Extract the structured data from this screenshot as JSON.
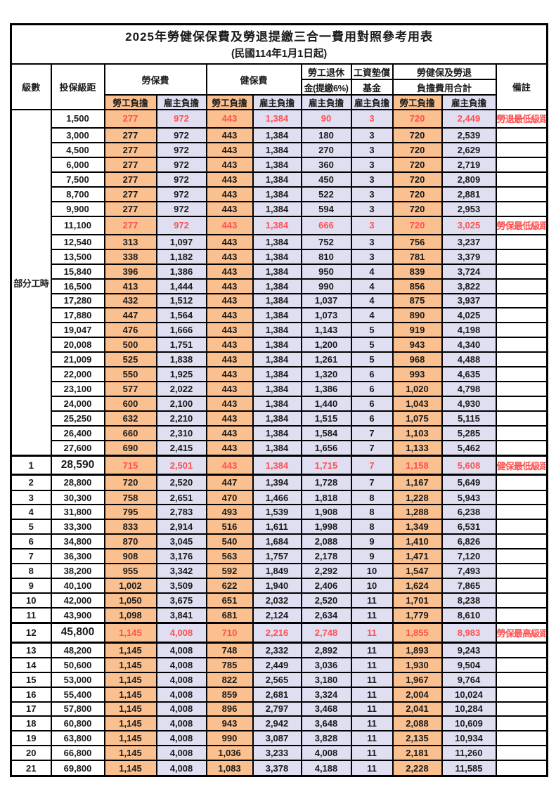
{
  "page": {
    "title": "2025年勞健保保費及勞退提繳三合一費用對照參考用表",
    "subtitle": "(民國114年1月1日起)"
  },
  "header": {
    "level": "級數",
    "bracket": "投保級距",
    "labor_group": "勞保費",
    "health_group": "健保費",
    "pension_line1": "勞工退休",
    "pension_line2": "金(提繳6%)",
    "fund_line1": "工資墊償",
    "fund_line2": "基金",
    "total_line1": "勞健保及勞退",
    "total_line2": "負擔費用合計",
    "emp_label": "勞工負擔",
    "er_label": "雇主負擔",
    "note": "備註"
  },
  "part_time_label": "部分工時",
  "colors": {
    "employee_column_fill": "#FAC090",
    "employer_column_fill": "#E0DFF2",
    "highlight_text": "#FF5050",
    "grid_border": "#000000"
  },
  "rows": [
    {
      "level": "",
      "bracket": "1,500",
      "values": [
        "277",
        "972",
        "443",
        "1,384",
        "90",
        "3",
        "720",
        "2,449"
      ],
      "note": "勞退最低級距",
      "highlight": true,
      "emphasis": false
    },
    {
      "level": "",
      "bracket": "3,000",
      "values": [
        "277",
        "972",
        "443",
        "1,384",
        "180",
        "3",
        "720",
        "2,539"
      ],
      "note": "",
      "highlight": false,
      "emphasis": false
    },
    {
      "level": "",
      "bracket": "4,500",
      "values": [
        "277",
        "972",
        "443",
        "1,384",
        "270",
        "3",
        "720",
        "2,629"
      ],
      "note": "",
      "highlight": false,
      "emphasis": false
    },
    {
      "level": "",
      "bracket": "6,000",
      "values": [
        "277",
        "972",
        "443",
        "1,384",
        "360",
        "3",
        "720",
        "2,719"
      ],
      "note": "",
      "highlight": false,
      "emphasis": false
    },
    {
      "level": "",
      "bracket": "7,500",
      "values": [
        "277",
        "972",
        "443",
        "1,384",
        "450",
        "3",
        "720",
        "2,809"
      ],
      "note": "",
      "highlight": false,
      "emphasis": false
    },
    {
      "level": "",
      "bracket": "8,700",
      "values": [
        "277",
        "972",
        "443",
        "1,384",
        "522",
        "3",
        "720",
        "2,881"
      ],
      "note": "",
      "highlight": false,
      "emphasis": false
    },
    {
      "level": "",
      "bracket": "9,900",
      "values": [
        "277",
        "972",
        "443",
        "1,384",
        "594",
        "3",
        "720",
        "2,953"
      ],
      "note": "",
      "highlight": false,
      "emphasis": false
    },
    {
      "level": "",
      "bracket": "11,100",
      "values": [
        "277",
        "972",
        "443",
        "1,384",
        "666",
        "3",
        "720",
        "3,025"
      ],
      "note": "勞保最低級距",
      "highlight": true,
      "emphasis": false
    },
    {
      "level": "",
      "bracket": "12,540",
      "values": [
        "313",
        "1,097",
        "443",
        "1,384",
        "752",
        "3",
        "756",
        "3,237"
      ],
      "note": "",
      "highlight": false,
      "emphasis": false
    },
    {
      "level": "",
      "bracket": "13,500",
      "values": [
        "338",
        "1,182",
        "443",
        "1,384",
        "810",
        "3",
        "781",
        "3,379"
      ],
      "note": "",
      "highlight": false,
      "emphasis": false
    },
    {
      "level": "",
      "bracket": "15,840",
      "values": [
        "396",
        "1,386",
        "443",
        "1,384",
        "950",
        "4",
        "839",
        "3,724"
      ],
      "note": "",
      "highlight": false,
      "emphasis": false
    },
    {
      "level": "",
      "bracket": "16,500",
      "values": [
        "413",
        "1,444",
        "443",
        "1,384",
        "990",
        "4",
        "856",
        "3,822"
      ],
      "note": "",
      "highlight": false,
      "emphasis": false
    },
    {
      "level": "",
      "bracket": "17,280",
      "values": [
        "432",
        "1,512",
        "443",
        "1,384",
        "1,037",
        "4",
        "875",
        "3,937"
      ],
      "note": "",
      "highlight": false,
      "emphasis": false
    },
    {
      "level": "",
      "bracket": "17,880",
      "values": [
        "447",
        "1,564",
        "443",
        "1,384",
        "1,073",
        "4",
        "890",
        "4,025"
      ],
      "note": "",
      "highlight": false,
      "emphasis": false
    },
    {
      "level": "",
      "bracket": "19,047",
      "values": [
        "476",
        "1,666",
        "443",
        "1,384",
        "1,143",
        "5",
        "919",
        "4,198"
      ],
      "note": "",
      "highlight": false,
      "emphasis": false
    },
    {
      "level": "",
      "bracket": "20,008",
      "values": [
        "500",
        "1,751",
        "443",
        "1,384",
        "1,200",
        "5",
        "943",
        "4,340"
      ],
      "note": "",
      "highlight": false,
      "emphasis": false
    },
    {
      "level": "",
      "bracket": "21,009",
      "values": [
        "525",
        "1,838",
        "443",
        "1,384",
        "1,261",
        "5",
        "968",
        "4,488"
      ],
      "note": "",
      "highlight": false,
      "emphasis": false
    },
    {
      "level": "",
      "bracket": "22,000",
      "values": [
        "550",
        "1,925",
        "443",
        "1,384",
        "1,320",
        "6",
        "993",
        "4,635"
      ],
      "note": "",
      "highlight": false,
      "emphasis": false
    },
    {
      "level": "",
      "bracket": "23,100",
      "values": [
        "577",
        "2,022",
        "443",
        "1,384",
        "1,386",
        "6",
        "1,020",
        "4,798"
      ],
      "note": "",
      "highlight": false,
      "emphasis": false
    },
    {
      "level": "",
      "bracket": "24,000",
      "values": [
        "600",
        "2,100",
        "443",
        "1,384",
        "1,440",
        "6",
        "1,043",
        "4,930"
      ],
      "note": "",
      "highlight": false,
      "emphasis": false
    },
    {
      "level": "",
      "bracket": "25,250",
      "values": [
        "632",
        "2,210",
        "443",
        "1,384",
        "1,515",
        "6",
        "1,075",
        "5,115"
      ],
      "note": "",
      "highlight": false,
      "emphasis": false
    },
    {
      "level": "",
      "bracket": "26,400",
      "values": [
        "660",
        "2,310",
        "443",
        "1,384",
        "1,584",
        "7",
        "1,103",
        "5,285"
      ],
      "note": "",
      "highlight": false,
      "emphasis": false
    },
    {
      "level": "",
      "bracket": "27,600",
      "values": [
        "690",
        "2,415",
        "443",
        "1,384",
        "1,656",
        "7",
        "1,133",
        "5,462"
      ],
      "note": "",
      "highlight": false,
      "emphasis": false
    },
    {
      "level": "1",
      "bracket": "28,590",
      "values": [
        "715",
        "2,501",
        "443",
        "1,384",
        "1,715",
        "7",
        "1,158",
        "5,608"
      ],
      "note": "健保最低級距",
      "highlight": true,
      "emphasis": true
    },
    {
      "level": "2",
      "bracket": "28,800",
      "values": [
        "720",
        "2,520",
        "447",
        "1,394",
        "1,728",
        "7",
        "1,167",
        "5,649"
      ],
      "note": "",
      "highlight": false,
      "emphasis": false
    },
    {
      "level": "3",
      "bracket": "30,300",
      "values": [
        "758",
        "2,651",
        "470",
        "1,466",
        "1,818",
        "8",
        "1,228",
        "5,943"
      ],
      "note": "",
      "highlight": false,
      "emphasis": false
    },
    {
      "level": "4",
      "bracket": "31,800",
      "values": [
        "795",
        "2,783",
        "493",
        "1,539",
        "1,908",
        "8",
        "1,288",
        "6,238"
      ],
      "note": "",
      "highlight": false,
      "emphasis": false
    },
    {
      "level": "5",
      "bracket": "33,300",
      "values": [
        "833",
        "2,914",
        "516",
        "1,611",
        "1,998",
        "8",
        "1,349",
        "6,531"
      ],
      "note": "",
      "highlight": false,
      "emphasis": false
    },
    {
      "level": "6",
      "bracket": "34,800",
      "values": [
        "870",
        "3,045",
        "540",
        "1,684",
        "2,088",
        "9",
        "1,410",
        "6,826"
      ],
      "note": "",
      "highlight": false,
      "emphasis": false
    },
    {
      "level": "7",
      "bracket": "36,300",
      "values": [
        "908",
        "3,176",
        "563",
        "1,757",
        "2,178",
        "9",
        "1,471",
        "7,120"
      ],
      "note": "",
      "highlight": false,
      "emphasis": false
    },
    {
      "level": "8",
      "bracket": "38,200",
      "values": [
        "955",
        "3,342",
        "592",
        "1,849",
        "2,292",
        "10",
        "1,547",
        "7,493"
      ],
      "note": "",
      "highlight": false,
      "emphasis": false
    },
    {
      "level": "9",
      "bracket": "40,100",
      "values": [
        "1,002",
        "3,509",
        "622",
        "1,940",
        "2,406",
        "10",
        "1,624",
        "7,865"
      ],
      "note": "",
      "highlight": false,
      "emphasis": false
    },
    {
      "level": "10",
      "bracket": "42,000",
      "values": [
        "1,050",
        "3,675",
        "651",
        "2,032",
        "2,520",
        "11",
        "1,701",
        "8,238"
      ],
      "note": "",
      "highlight": false,
      "emphasis": false
    },
    {
      "level": "11",
      "bracket": "43,900",
      "values": [
        "1,098",
        "3,841",
        "681",
        "2,124",
        "2,634",
        "11",
        "1,779",
        "8,610"
      ],
      "note": "",
      "highlight": false,
      "emphasis": false
    },
    {
      "level": "12",
      "bracket": "45,800",
      "values": [
        "1,145",
        "4,008",
        "710",
        "2,216",
        "2,748",
        "11",
        "1,855",
        "8,983"
      ],
      "note": "勞保最高級距",
      "highlight": true,
      "emphasis": true
    },
    {
      "level": "13",
      "bracket": "48,200",
      "values": [
        "1,145",
        "4,008",
        "748",
        "2,332",
        "2,892",
        "11",
        "1,893",
        "9,243"
      ],
      "note": "",
      "highlight": false,
      "emphasis": false
    },
    {
      "level": "14",
      "bracket": "50,600",
      "values": [
        "1,145",
        "4,008",
        "785",
        "2,449",
        "3,036",
        "11",
        "1,930",
        "9,504"
      ],
      "note": "",
      "highlight": false,
      "emphasis": false
    },
    {
      "level": "15",
      "bracket": "53,000",
      "values": [
        "1,145",
        "4,008",
        "822",
        "2,565",
        "3,180",
        "11",
        "1,967",
        "9,764"
      ],
      "note": "",
      "highlight": false,
      "emphasis": false
    },
    {
      "level": "16",
      "bracket": "55,400",
      "values": [
        "1,145",
        "4,008",
        "859",
        "2,681",
        "3,324",
        "11",
        "2,004",
        "10,024"
      ],
      "note": "",
      "highlight": false,
      "emphasis": false
    },
    {
      "level": "17",
      "bracket": "57,800",
      "values": [
        "1,145",
        "4,008",
        "896",
        "2,797",
        "3,468",
        "11",
        "2,041",
        "10,284"
      ],
      "note": "",
      "highlight": false,
      "emphasis": false
    },
    {
      "level": "18",
      "bracket": "60,800",
      "values": [
        "1,145",
        "4,008",
        "943",
        "2,942",
        "3,648",
        "11",
        "2,088",
        "10,609"
      ],
      "note": "",
      "highlight": false,
      "emphasis": false
    },
    {
      "level": "19",
      "bracket": "63,800",
      "values": [
        "1,145",
        "4,008",
        "990",
        "3,087",
        "3,828",
        "11",
        "2,135",
        "10,934"
      ],
      "note": "",
      "highlight": false,
      "emphasis": false
    },
    {
      "level": "20",
      "bracket": "66,800",
      "values": [
        "1,145",
        "4,008",
        "1,036",
        "3,233",
        "4,008",
        "11",
        "2,181",
        "11,260"
      ],
      "note": "",
      "highlight": false,
      "emphasis": false
    },
    {
      "level": "21",
      "bracket": "69,800",
      "values": [
        "1,145",
        "4,008",
        "1,083",
        "3,378",
        "4,188",
        "11",
        "2,228",
        "11,585"
      ],
      "note": "",
      "highlight": false,
      "emphasis": false
    }
  ]
}
